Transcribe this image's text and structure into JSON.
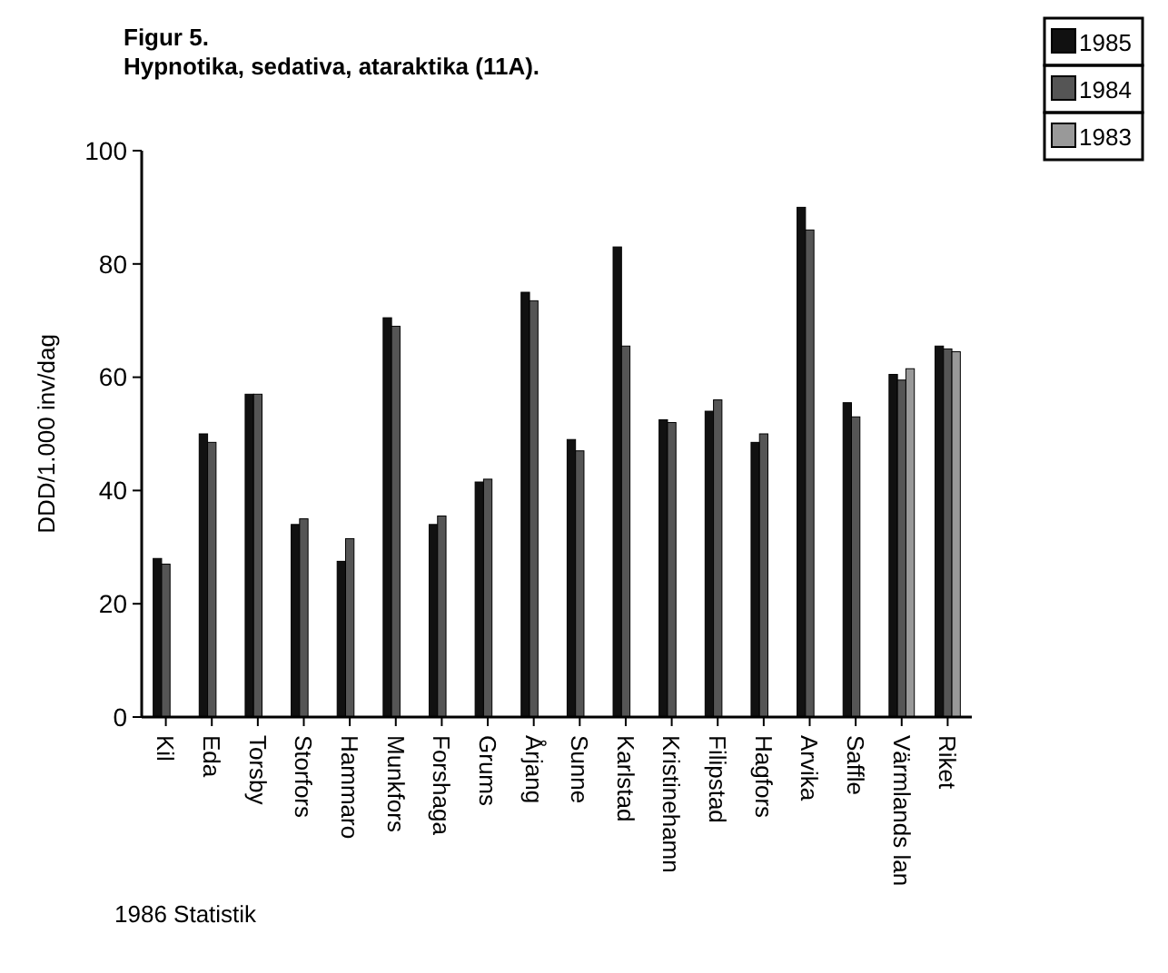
{
  "chart_data": {
    "type": "bar",
    "title": "Figur 5.",
    "subtitle": "Hypnotika, sedativa, ataraktika (11A).",
    "ylabel": "DDD/1.000 inv/dag",
    "categories": [
      "Kil",
      "Eda",
      "Torsby",
      "Storfors",
      "Hammaro",
      "Munkfors",
      "Forshaga",
      "Grums",
      "Årjang",
      "Sunne",
      "Karlstad",
      "Kristinehamn",
      "Filipstad",
      "Hagfors",
      "Arvika",
      "Saffle",
      "Värmlands lan",
      "Riket"
    ],
    "series": [
      {
        "name": "1985",
        "color": "#111111",
        "values": [
          28,
          50,
          57,
          34,
          27.5,
          70.5,
          34,
          41.5,
          75,
          49,
          83,
          52.5,
          54,
          48.5,
          90,
          55.5,
          60.5,
          65.5
        ]
      },
      {
        "name": "1984",
        "color": "#555555",
        "values": [
          27,
          48.5,
          57,
          35,
          31.5,
          69,
          35.5,
          42,
          73.5,
          47,
          65.5,
          52,
          56,
          50,
          86,
          53,
          59.5,
          65
        ]
      },
      {
        "name": "1983",
        "color": "#999999",
        "values": [
          null,
          null,
          null,
          null,
          null,
          null,
          null,
          null,
          null,
          null,
          null,
          null,
          null,
          null,
          null,
          null,
          61.5,
          64.5
        ]
      }
    ],
    "ylim": [
      0,
      100
    ],
    "yticks": [
      0,
      20,
      40,
      60,
      80,
      100
    ],
    "legend": "top right",
    "annotations": [
      "1986 Statistik"
    ]
  }
}
